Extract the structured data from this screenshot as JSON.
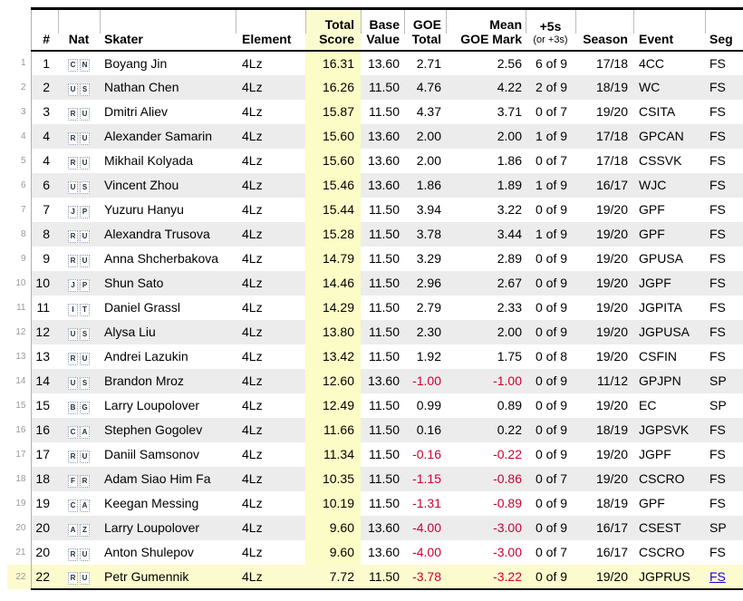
{
  "colors": {
    "highlight_yellow": "#fbfbce",
    "total_score_column_yellow": "#fafaa0",
    "row_stripe_gray": "#ececec",
    "negative_value_red": "#cc0033",
    "link_blue": "#2200cc",
    "table_border_black": "#000000",
    "gutter_text_gray": "#999999"
  },
  "table": {
    "header": {
      "rank": "#",
      "nat": "Nat",
      "skater": "Skater",
      "element": "Element",
      "total_line1": "Total",
      "total_line2": "Score",
      "base_line1": "Base",
      "base_line2": "Value",
      "goe_line1": "GOE",
      "goe_line2": "Total",
      "mean_line1": "Mean",
      "mean_line2": "GOE Mark",
      "plus_line1": "+5s",
      "plus_line2": "(or +3s)",
      "season": "Season",
      "event": "Event",
      "seg": "Seg"
    },
    "rows": [
      {
        "row_num": "1",
        "rank": "1",
        "nat": "CN",
        "skater": "Boyang Jin",
        "element": "4Lz",
        "total_score": "16.31",
        "base_value": "13.60",
        "goe_total": "2.71",
        "mean_goe": "2.56",
        "plus5s": "6 of 9",
        "season": "17/18",
        "event": "4CC",
        "seg": "FS",
        "seg_is_link": false,
        "highlighted": false
      },
      {
        "row_num": "2",
        "rank": "2",
        "nat": "US",
        "skater": "Nathan Chen",
        "element": "4Lz",
        "total_score": "16.26",
        "base_value": "11.50",
        "goe_total": "4.76",
        "mean_goe": "4.22",
        "plus5s": "2 of 9",
        "season": "18/19",
        "event": "WC",
        "seg": "FS",
        "seg_is_link": false,
        "highlighted": false
      },
      {
        "row_num": "3",
        "rank": "3",
        "nat": "RU",
        "skater": "Dmitri Aliev",
        "element": "4Lz",
        "total_score": "15.87",
        "base_value": "11.50",
        "goe_total": "4.37",
        "mean_goe": "3.71",
        "plus5s": "0 of 7",
        "season": "19/20",
        "event": "CSITA",
        "seg": "FS",
        "seg_is_link": false,
        "highlighted": false
      },
      {
        "row_num": "4",
        "rank": "4",
        "nat": "RU",
        "skater": "Alexander Samarin",
        "element": "4Lz",
        "total_score": "15.60",
        "base_value": "13.60",
        "goe_total": "2.00",
        "mean_goe": "2.00",
        "plus5s": "1 of 9",
        "season": "17/18",
        "event": "GPCAN",
        "seg": "FS",
        "seg_is_link": false,
        "highlighted": false
      },
      {
        "row_num": "5",
        "rank": "4",
        "nat": "RU",
        "skater": "Mikhail Kolyada",
        "element": "4Lz",
        "total_score": "15.60",
        "base_value": "13.60",
        "goe_total": "2.00",
        "mean_goe": "1.86",
        "plus5s": "0 of 7",
        "season": "17/18",
        "event": "CSSVK",
        "seg": "FS",
        "seg_is_link": false,
        "highlighted": false
      },
      {
        "row_num": "6",
        "rank": "6",
        "nat": "US",
        "skater": "Vincent Zhou",
        "element": "4Lz",
        "total_score": "15.46",
        "base_value": "13.60",
        "goe_total": "1.86",
        "mean_goe": "1.89",
        "plus5s": "1 of 9",
        "season": "16/17",
        "event": "WJC",
        "seg": "FS",
        "seg_is_link": false,
        "highlighted": false
      },
      {
        "row_num": "7",
        "rank": "7",
        "nat": "JP",
        "skater": "Yuzuru Hanyu",
        "element": "4Lz",
        "total_score": "15.44",
        "base_value": "11.50",
        "goe_total": "3.94",
        "mean_goe": "3.22",
        "plus5s": "0 of 9",
        "season": "19/20",
        "event": "GPF",
        "seg": "FS",
        "seg_is_link": false,
        "highlighted": false
      },
      {
        "row_num": "8",
        "rank": "8",
        "nat": "RU",
        "skater": "Alexandra Trusova",
        "element": "4Lz",
        "total_score": "15.28",
        "base_value": "11.50",
        "goe_total": "3.78",
        "mean_goe": "3.44",
        "plus5s": "1 of 9",
        "season": "19/20",
        "event": "GPF",
        "seg": "FS",
        "seg_is_link": false,
        "highlighted": false
      },
      {
        "row_num": "9",
        "rank": "9",
        "nat": "RU",
        "skater": "Anna Shcherbakova",
        "element": "4Lz",
        "total_score": "14.79",
        "base_value": "11.50",
        "goe_total": "3.29",
        "mean_goe": "2.89",
        "plus5s": "0 of 9",
        "season": "19/20",
        "event": "GPUSA",
        "seg": "FS",
        "seg_is_link": false,
        "highlighted": false
      },
      {
        "row_num": "10",
        "rank": "10",
        "nat": "JP",
        "skater": "Shun Sato",
        "element": "4Lz",
        "total_score": "14.46",
        "base_value": "11.50",
        "goe_total": "2.96",
        "mean_goe": "2.67",
        "plus5s": "0 of 9",
        "season": "19/20",
        "event": "JGPF",
        "seg": "FS",
        "seg_is_link": false,
        "highlighted": false
      },
      {
        "row_num": "11",
        "rank": "11",
        "nat": "IT",
        "skater": "Daniel Grassl",
        "element": "4Lz",
        "total_score": "14.29",
        "base_value": "11.50",
        "goe_total": "2.79",
        "mean_goe": "2.33",
        "plus5s": "0 of 9",
        "season": "19/20",
        "event": "JGPITA",
        "seg": "FS",
        "seg_is_link": false,
        "highlighted": false
      },
      {
        "row_num": "12",
        "rank": "12",
        "nat": "US",
        "skater": "Alysa Liu",
        "element": "4Lz",
        "total_score": "13.80",
        "base_value": "11.50",
        "goe_total": "2.30",
        "mean_goe": "2.00",
        "plus5s": "0 of 9",
        "season": "19/20",
        "event": "JGPUSA",
        "seg": "FS",
        "seg_is_link": false,
        "highlighted": false
      },
      {
        "row_num": "13",
        "rank": "13",
        "nat": "RU",
        "skater": "Andrei Lazukin",
        "element": "4Lz",
        "total_score": "13.42",
        "base_value": "11.50",
        "goe_total": "1.92",
        "mean_goe": "1.75",
        "plus5s": "0 of 8",
        "season": "19/20",
        "event": "CSFIN",
        "seg": "FS",
        "seg_is_link": false,
        "highlighted": false
      },
      {
        "row_num": "14",
        "rank": "14",
        "nat": "US",
        "skater": "Brandon Mroz",
        "element": "4Lz",
        "total_score": "12.60",
        "base_value": "13.60",
        "goe_total": "-1.00",
        "mean_goe": "-1.00",
        "plus5s": "0 of 9",
        "season": "11/12",
        "event": "GPJPN",
        "seg": "SP",
        "seg_is_link": false,
        "highlighted": false
      },
      {
        "row_num": "15",
        "rank": "15",
        "nat": "BG",
        "skater": "Larry Loupolover",
        "element": "4Lz",
        "total_score": "12.49",
        "base_value": "11.50",
        "goe_total": "0.99",
        "mean_goe": "0.89",
        "plus5s": "0 of 9",
        "season": "19/20",
        "event": "EC",
        "seg": "SP",
        "seg_is_link": false,
        "highlighted": false
      },
      {
        "row_num": "16",
        "rank": "16",
        "nat": "CA",
        "skater": "Stephen Gogolev",
        "element": "4Lz",
        "total_score": "11.66",
        "base_value": "11.50",
        "goe_total": "0.16",
        "mean_goe": "0.22",
        "plus5s": "0 of 9",
        "season": "18/19",
        "event": "JGPSVK",
        "seg": "FS",
        "seg_is_link": false,
        "highlighted": false
      },
      {
        "row_num": "17",
        "rank": "17",
        "nat": "RU",
        "skater": "Daniil Samsonov",
        "element": "4Lz",
        "total_score": "11.34",
        "base_value": "11.50",
        "goe_total": "-0.16",
        "mean_goe": "-0.22",
        "plus5s": "0 of 9",
        "season": "19/20",
        "event": "JGPF",
        "seg": "FS",
        "seg_is_link": false,
        "highlighted": false
      },
      {
        "row_num": "18",
        "rank": "18",
        "nat": "FR",
        "skater": "Adam Siao Him Fa",
        "element": "4Lz",
        "total_score": "10.35",
        "base_value": "11.50",
        "goe_total": "-1.15",
        "mean_goe": "-0.86",
        "plus5s": "0 of 7",
        "season": "19/20",
        "event": "CSCRO",
        "seg": "FS",
        "seg_is_link": false,
        "highlighted": false
      },
      {
        "row_num": "19",
        "rank": "19",
        "nat": "CA",
        "skater": "Keegan Messing",
        "element": "4Lz",
        "total_score": "10.19",
        "base_value": "11.50",
        "goe_total": "-1.31",
        "mean_goe": "-0.89",
        "plus5s": "0 of 9",
        "season": "18/19",
        "event": "GPF",
        "seg": "FS",
        "seg_is_link": false,
        "highlighted": false
      },
      {
        "row_num": "20",
        "rank": "20",
        "nat": "AZ",
        "skater": "Larry Loupolover",
        "element": "4Lz",
        "total_score": "9.60",
        "base_value": "13.60",
        "goe_total": "-4.00",
        "mean_goe": "-3.00",
        "plus5s": "0 of 9",
        "season": "16/17",
        "event": "CSEST",
        "seg": "SP",
        "seg_is_link": false,
        "highlighted": false
      },
      {
        "row_num": "21",
        "rank": "20",
        "nat": "RU",
        "skater": "Anton Shulepov",
        "element": "4Lz",
        "total_score": "9.60",
        "base_value": "13.60",
        "goe_total": "-4.00",
        "mean_goe": "-3.00",
        "plus5s": "0 of 7",
        "season": "16/17",
        "event": "CSCRO",
        "seg": "FS",
        "seg_is_link": false,
        "highlighted": false
      },
      {
        "row_num": "22",
        "rank": "22",
        "nat": "RU",
        "skater": "Petr Gumennik",
        "element": "4Lz",
        "total_score": "7.72",
        "base_value": "11.50",
        "goe_total": "-3.78",
        "mean_goe": "-3.22",
        "plus5s": "0 of 9",
        "season": "19/20",
        "event": "JGPRUS",
        "seg": "FS",
        "seg_is_link": true,
        "highlighted": true
      }
    ]
  }
}
